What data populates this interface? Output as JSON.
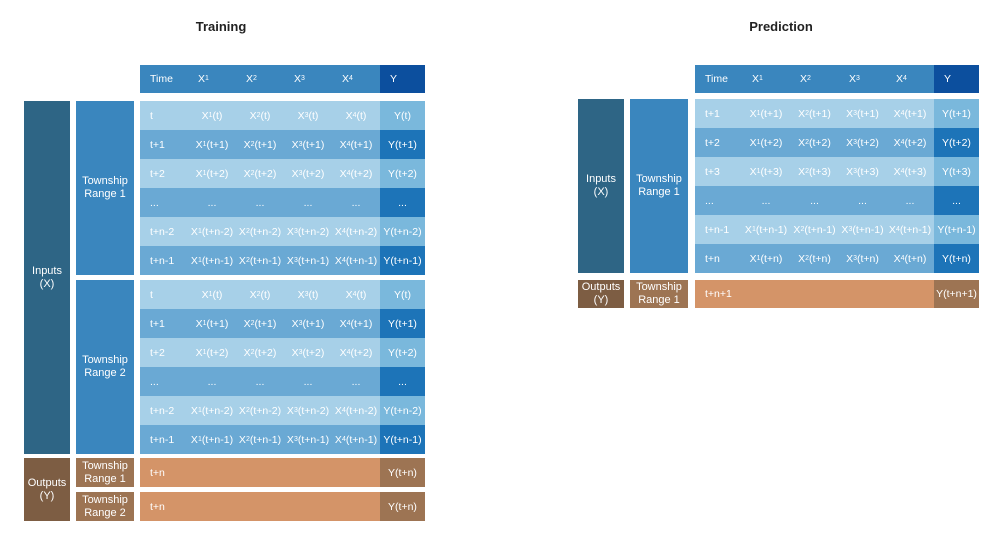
{
  "panels": [
    {
      "id": "training",
      "title": "Training",
      "header": [
        "Time",
        "X₁",
        "X₂",
        "X₃",
        "X₄",
        "Y"
      ],
      "groups": [
        {
          "input_label": "Inputs\n(X)",
          "sub_groups": [
            {
              "label": "Township\nRange 1",
              "rows": [
                [
                  "t",
                  "X₁(t)",
                  "X₂(t)",
                  "X₃(t)",
                  "X₄(t)",
                  "Y(t)"
                ],
                [
                  "t+1",
                  "X₁(t+1)",
                  "X₂(t+1)",
                  "X₃(t+1)",
                  "X₄(t+1)",
                  "Y(t+1)"
                ],
                [
                  "t+2",
                  "X₁(t+2)",
                  "X₂(t+2)",
                  "X₃(t+2)",
                  "X₄(t+2)",
                  "Y(t+2)"
                ],
                [
                  "...",
                  "...",
                  "...",
                  "...",
                  "...",
                  "..."
                ],
                [
                  "t+n-2",
                  "X₁(t+n-2)",
                  "X₂(t+n-2)",
                  "X₃(t+n-2)",
                  "X₄(t+n-2)",
                  "Y(t+n-2)"
                ],
                [
                  "t+n-1",
                  "X₁(t+n-1)",
                  "X₂(t+n-1)",
                  "X₃(t+n-1)",
                  "X₄(t+n-1)",
                  "Y(t+n-1)"
                ]
              ]
            },
            {
              "label": "Township\nRange 2",
              "rows": [
                [
                  "t",
                  "X₁(t)",
                  "X₂(t)",
                  "X₃(t)",
                  "X₄(t)",
                  "Y(t)"
                ],
                [
                  "t+1",
                  "X₁(t+1)",
                  "X₂(t+1)",
                  "X₃(t+1)",
                  "X₄(t+1)",
                  "Y(t+1)"
                ],
                [
                  "t+2",
                  "X₁(t+2)",
                  "X₂(t+2)",
                  "X₃(t+2)",
                  "X₄(t+2)",
                  "Y(t+2)"
                ],
                [
                  "...",
                  "...",
                  "...",
                  "...",
                  "...",
                  "..."
                ],
                [
                  "t+n-2",
                  "X₁(t+n-2)",
                  "X₂(t+n-2)",
                  "X₃(t+n-2)",
                  "X₄(t+n-2)",
                  "Y(t+n-2)"
                ],
                [
                  "t+n-1",
                  "X₁(t+n-1)",
                  "X₂(t+n-1)",
                  "X₃(t+n-1)",
                  "X₄(t+n-1)",
                  "Y(t+n-1)"
                ]
              ]
            }
          ]
        }
      ],
      "outputs": {
        "label": "Outputs\n(Y)",
        "rows": [
          {
            "label": "Township\nRange 1",
            "time": "t+n",
            "y": "Y(t+n)"
          },
          {
            "label": "Township\nRange 2",
            "time": "t+n",
            "y": "Y(t+n)"
          }
        ]
      }
    },
    {
      "id": "prediction",
      "title": "Prediction",
      "header": [
        "Time",
        "X₁",
        "X₂",
        "X₃",
        "X₄",
        "Y"
      ],
      "groups": [
        {
          "input_label": "Inputs\n(X)",
          "sub_groups": [
            {
              "label": "Township\nRange 1",
              "rows": [
                [
                  "t+1",
                  "X₁(t+1)",
                  "X₂(t+1)",
                  "X₃(t+1)",
                  "X₄(t+1)",
                  "Y(t+1)"
                ],
                [
                  "t+2",
                  "X₁(t+2)",
                  "X₂(t+2)",
                  "X₃(t+2)",
                  "X₄(t+2)",
                  "Y(t+2)"
                ],
                [
                  "t+3",
                  "X₁(t+3)",
                  "X₂(t+3)",
                  "X₃(t+3)",
                  "X₄(t+3)",
                  "Y(t+3)"
                ],
                [
                  "...",
                  "...",
                  "...",
                  "...",
                  "...",
                  "..."
                ],
                [
                  "t+n-1",
                  "X₁(t+n-1)",
                  "X₂(t+n-1)",
                  "X₃(t+n-1)",
                  "X₄(t+n-1)",
                  "Y(t+n-1)"
                ],
                [
                  "t+n",
                  "X₁(t+n)",
                  "X₂(t+n)",
                  "X₃(t+n)",
                  "X₄(t+n)",
                  "Y(t+n)"
                ]
              ]
            }
          ]
        }
      ],
      "outputs": {
        "label": "Outputs\n(Y)",
        "rows": [
          {
            "label": "Township\nRange 1",
            "time": "t+n+1",
            "y": "Y(t+n+1)"
          }
        ]
      }
    }
  ],
  "colors": {
    "input_outer": "#2e6585",
    "range_box": "#3a86be",
    "header": "#3a86be",
    "header_y": "#0c4f9e",
    "row_light": "#a7d0e8",
    "row_dark": "#6aa9d4",
    "y_light": "#7ab8dc",
    "y_dark": "#1d74b8",
    "output_outer": "#7d5d43",
    "output_inner": "#9d7453",
    "output_row": "#d49468"
  }
}
